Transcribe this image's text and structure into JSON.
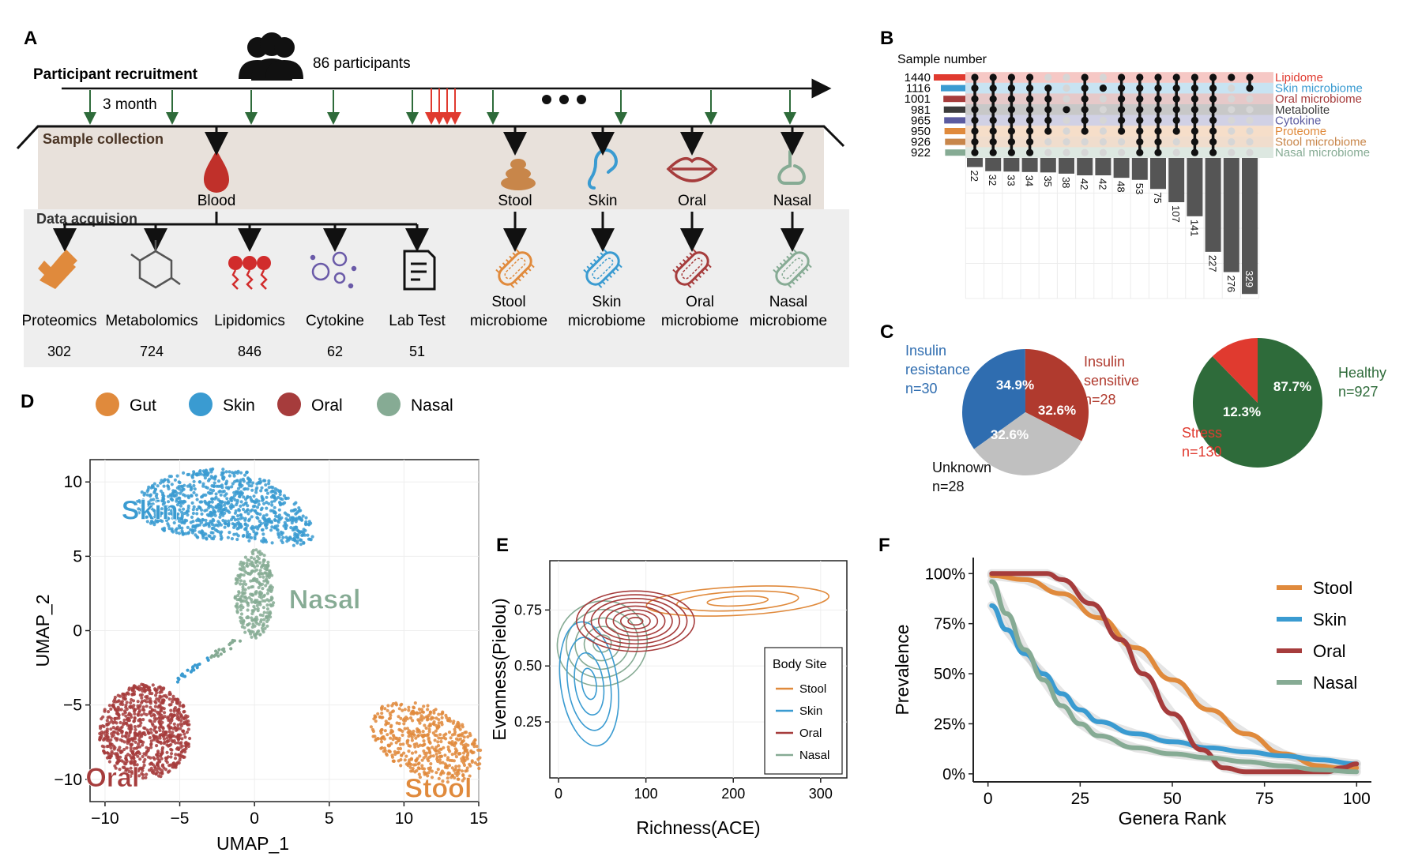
{
  "panel_letters": {
    "a": "A",
    "b": "B",
    "c": "C",
    "d": "D",
    "e": "E",
    "f": "F"
  },
  "panelA": {
    "recruit_label": "Participant recruitment",
    "participants": "86 participants",
    "interval": "3 month",
    "sample_label": "Sample collection",
    "data_label": "Data acquision",
    "sources": [
      "Blood",
      "Stool",
      "Skin",
      "Oral",
      "Nasal"
    ],
    "omics": [
      {
        "l1": "Proteomics",
        "l2": "",
        "n": "302"
      },
      {
        "l1": "Metabolomics",
        "l2": "",
        "n": "724"
      },
      {
        "l1": "Lipidomics",
        "l2": "",
        "n": "846"
      },
      {
        "l1": "Cytokine",
        "l2": "",
        "n": "62"
      },
      {
        "l1": "Lab Test",
        "l2": "",
        "n": "51"
      },
      {
        "l1": "Stool",
        "l2": "microbiome",
        "n": ""
      },
      {
        "l1": "Skin",
        "l2": "microbiome",
        "n": ""
      },
      {
        "l1": "Oral",
        "l2": "microbiome",
        "n": ""
      },
      {
        "l1": "Nasal",
        "l2": "microbiome",
        "n": ""
      }
    ],
    "colors": {
      "green": "#2e6b3a",
      "red": "#e03a2f",
      "bandA": "#e8e1db",
      "bandB": "#eeeeee",
      "orange": "#e08a3c",
      "blue": "#3a9bd1",
      "darkred": "#a63c3c",
      "sage": "#86ab94"
    }
  },
  "chart_data": [
    {
      "panel": "B",
      "type": "bar",
      "subtype": "upset",
      "title": "Sample number",
      "sets": [
        {
          "name": "Lipidome",
          "size": 1440,
          "color": "#e03a2f"
        },
        {
          "name": "Skin microbiome",
          "size": 1116,
          "color": "#3a9bd1"
        },
        {
          "name": "Oral microbiome",
          "size": 1001,
          "color": "#a63c3c"
        },
        {
          "name": "Metabolite",
          "size": 981,
          "color": "#3b3b3b"
        },
        {
          "name": "Cytokine",
          "size": 965,
          "color": "#5b5ba0"
        },
        {
          "name": "Proteome",
          "size": 950,
          "color": "#e08a3c"
        },
        {
          "name": "Stool microbiome",
          "size": 926,
          "color": "#c8864a"
        },
        {
          "name": "Nasal microbiome",
          "size": 922,
          "color": "#86ab94"
        }
      ],
      "intersections": [
        {
          "value": 22,
          "members": [
            0,
            1,
            2,
            3,
            4,
            5,
            6,
            7
          ]
        },
        {
          "value": 32,
          "members": [
            0,
            1,
            2,
            3,
            4,
            5,
            6,
            7
          ]
        },
        {
          "value": 33,
          "members": [
            0,
            1,
            2,
            3,
            4,
            5,
            6,
            7
          ]
        },
        {
          "value": 34,
          "members": [
            0,
            1,
            2,
            3,
            4,
            5,
            6,
            7
          ]
        },
        {
          "value": 35,
          "members": [
            1,
            2,
            3,
            4,
            5
          ]
        },
        {
          "value": 38,
          "members": [
            3
          ]
        },
        {
          "value": 42,
          "members": [
            0,
            1,
            2,
            3,
            4,
            5
          ]
        },
        {
          "value": 42,
          "members": [
            1
          ]
        },
        {
          "value": 48,
          "members": [
            0,
            1,
            2,
            3,
            4,
            5
          ]
        },
        {
          "value": 53,
          "members": [
            0,
            1,
            2,
            3,
            4,
            5,
            6,
            7
          ]
        },
        {
          "value": 75,
          "members": [
            0,
            1,
            2,
            3,
            4,
            5,
            6,
            7
          ]
        },
        {
          "value": 107,
          "members": [
            0,
            1,
            2,
            3,
            4,
            5
          ]
        },
        {
          "value": 141,
          "members": [
            0,
            1,
            2,
            3,
            4,
            5,
            6,
            7
          ]
        },
        {
          "value": 227,
          "members": [
            0,
            1,
            2,
            3,
            4,
            5,
            6,
            7
          ]
        },
        {
          "value": 276,
          "members": [
            0
          ]
        },
        {
          "value": 329,
          "members": [
            0,
            1
          ]
        }
      ]
    },
    {
      "panel": "C",
      "type": "pie",
      "slices": [
        {
          "label": "Insulin resistance",
          "n": "n=30",
          "value": 34.9,
          "text": "34.9%",
          "color": "#2f6db0"
        },
        {
          "label": "Insulin sensitive",
          "n": "n=28",
          "value": 32.6,
          "text": "32.6%",
          "color": "#b03a2e"
        },
        {
          "label": "Unknown",
          "n": "n=28",
          "value": 32.6,
          "text": "32.6%",
          "color": "#c0c0c0"
        }
      ]
    },
    {
      "panel": "C",
      "type": "pie",
      "slices": [
        {
          "label": "Healthy",
          "n": "n=927",
          "value": 87.7,
          "text": "87.7%",
          "color": "#2e6b3a"
        },
        {
          "label": "Stress",
          "n": "n=130",
          "value": 12.3,
          "text": "12.3%",
          "color": "#e03a2f"
        }
      ]
    },
    {
      "panel": "D",
      "type": "scatter",
      "xlabel": "UMAP_1",
      "ylabel": "UMAP_2",
      "xlim": [
        -11,
        15
      ],
      "ylim": [
        -11.5,
        11.5
      ],
      "xticks": [
        -10,
        -5,
        0,
        5,
        10,
        15
      ],
      "yticks": [
        -10,
        -5,
        0,
        5,
        10
      ],
      "legend": [
        "Gut",
        "Skin",
        "Oral",
        "Nasal"
      ],
      "legend_colors": [
        "#e08a3c",
        "#3a9bd1",
        "#a63c3c",
        "#86ab94"
      ],
      "cluster_labels": [
        {
          "text": "Skin",
          "x": -7,
          "y": 7.5,
          "color": "#3a9bd1"
        },
        {
          "text": "Nasal",
          "x": 4.7,
          "y": 1.5,
          "color": "#86ab94"
        },
        {
          "text": "Oral",
          "x": -9.5,
          "y": -10.5,
          "color": "#a63c3c"
        },
        {
          "text": "Stool",
          "x": 12.3,
          "y": -11.2,
          "color": "#e08a3c"
        }
      ],
      "clusters": [
        {
          "name": "Skin",
          "color": "#3a9bd1",
          "cx": -2,
          "cy": 8.5,
          "rx": 6,
          "ry": 2.4,
          "n": 900
        },
        {
          "name": "Nasal",
          "color": "#86ab94",
          "cx": 0,
          "cy": 2.5,
          "rx": 1.3,
          "ry": 3,
          "n": 300
        },
        {
          "name": "Oral",
          "color": "#a63c3c",
          "cx": -7.3,
          "cy": -6.8,
          "rx": 3.1,
          "ry": 3.2,
          "n": 800
        },
        {
          "name": "Stool",
          "color": "#e08a3c",
          "cx": 11.5,
          "cy": -7.5,
          "rx": 3.7,
          "ry": 2.5,
          "n": 500
        }
      ]
    },
    {
      "panel": "E",
      "type": "line",
      "subtype": "density-contour",
      "xlabel": "Richness(ACE)",
      "ylabel": "Evenness(Pielou)",
      "xlim": [
        -10,
        330
      ],
      "ylim": [
        0,
        0.97
      ],
      "xticks": [
        0,
        100,
        200,
        300
      ],
      "yticks": [
        0.25,
        0.5,
        0.75
      ],
      "ytick_labels": [
        "0.25",
        "0.50",
        "0.75"
      ],
      "legend_title": "Body Site",
      "series": [
        {
          "name": "Stool",
          "color": "#e08a3c",
          "cx": 205,
          "cy": 0.79,
          "rx": 115,
          "ry": 0.07,
          "rings": 3
        },
        {
          "name": "Skin",
          "color": "#3a9bd1",
          "cx": 35,
          "cy": 0.42,
          "rx": 35,
          "ry": 0.3,
          "rings": 4
        },
        {
          "name": "Oral",
          "color": "#a63c3c",
          "cx": 88,
          "cy": 0.7,
          "rx": 70,
          "ry": 0.14,
          "rings": 8
        },
        {
          "name": "Nasal",
          "color": "#86ab94",
          "cx": 50,
          "cy": 0.6,
          "rx": 55,
          "ry": 0.2,
          "rings": 5
        }
      ]
    },
    {
      "panel": "F",
      "type": "line",
      "xlabel": "Genera Rank",
      "ylabel": "Prevalence",
      "xlim": [
        -4,
        104
      ],
      "ylim": [
        -4,
        108
      ],
      "xticks": [
        0,
        25,
        50,
        75,
        100
      ],
      "yticks": [
        0,
        25,
        50,
        75,
        100
      ],
      "ytick_labels": [
        "0%",
        "25%",
        "50%",
        "75%",
        "100%"
      ],
      "series": [
        {
          "name": "Stool",
          "color": "#e08a3c",
          "points": [
            [
              1,
              99
            ],
            [
              10,
              97
            ],
            [
              20,
              90
            ],
            [
              30,
              78
            ],
            [
              40,
              63
            ],
            [
              50,
              47
            ],
            [
              60,
              32
            ],
            [
              70,
              20
            ],
            [
              80,
              10
            ],
            [
              90,
              4
            ],
            [
              95,
              3
            ],
            [
              100,
              3
            ]
          ]
        },
        {
          "name": "Skin",
          "color": "#3a9bd1",
          "points": [
            [
              1,
              84
            ],
            [
              5,
              72
            ],
            [
              10,
              60
            ],
            [
              15,
              50
            ],
            [
              20,
              40
            ],
            [
              25,
              32
            ],
            [
              30,
              26
            ],
            [
              40,
              20
            ],
            [
              50,
              16
            ],
            [
              60,
              13
            ],
            [
              70,
              11
            ],
            [
              80,
              9
            ],
            [
              90,
              7
            ],
            [
              100,
              5
            ]
          ]
        },
        {
          "name": "Oral",
          "color": "#a63c3c",
          "points": [
            [
              1,
              100
            ],
            [
              8,
              100
            ],
            [
              16,
              100
            ],
            [
              20,
              97
            ],
            [
              28,
              85
            ],
            [
              36,
              67
            ],
            [
              42,
              50
            ],
            [
              50,
              30
            ],
            [
              58,
              12
            ],
            [
              64,
              3
            ],
            [
              70,
              1
            ],
            [
              80,
              1
            ],
            [
              92,
              1
            ],
            [
              96,
              3
            ],
            [
              100,
              5
            ]
          ]
        },
        {
          "name": "Nasal",
          "color": "#86ab94",
          "points": [
            [
              1,
              96
            ],
            [
              5,
              80
            ],
            [
              10,
              62
            ],
            [
              15,
              47
            ],
            [
              20,
              34
            ],
            [
              25,
              25
            ],
            [
              30,
              19
            ],
            [
              40,
              13
            ],
            [
              50,
              10
            ],
            [
              60,
              8
            ],
            [
              70,
              6
            ],
            [
              80,
              4
            ],
            [
              90,
              2
            ],
            [
              100,
              1
            ]
          ]
        }
      ]
    }
  ]
}
